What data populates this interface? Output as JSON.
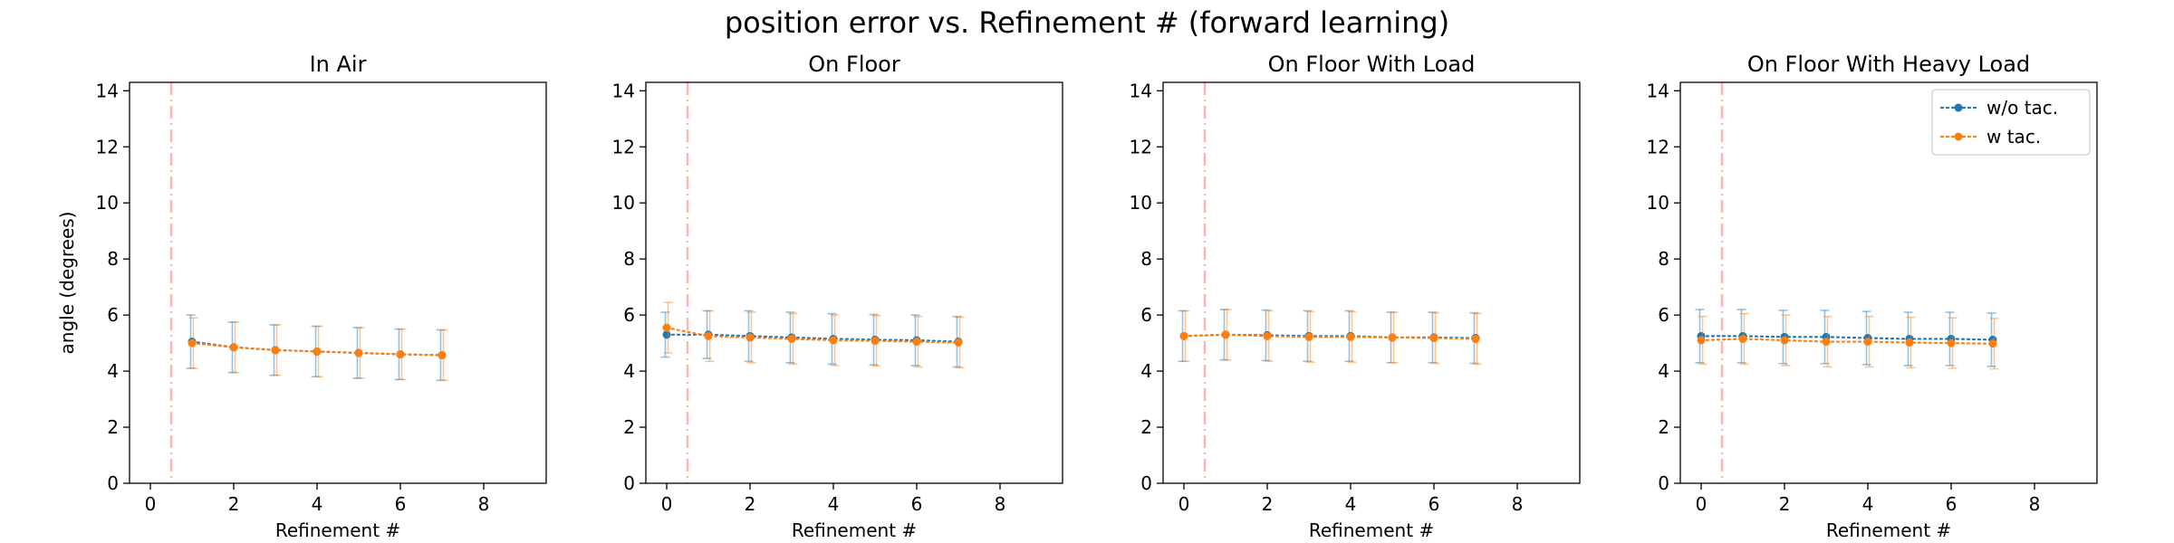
{
  "figure": {
    "title": "position error vs. Refinement # (forward learning)",
    "series_colors": {
      "w/o tac.": "#1f77b4",
      "w tac.": "#ff7f0e"
    },
    "marker_color": "#ffb3b3"
  },
  "chart_data": [
    {
      "type": "line",
      "title": "In Air",
      "xlabel": "Refinement #",
      "ylabel": "angle (degrees)",
      "xlim": [
        -0.5,
        9.5
      ],
      "ylim": [
        0,
        14.3
      ],
      "xticks": [
        0,
        2,
        4,
        6,
        8
      ],
      "yticks": [
        0,
        2,
        4,
        6,
        8,
        10,
        12,
        14
      ],
      "vline_x": 0.5,
      "grid": false,
      "legend": null,
      "x": [
        1,
        2,
        3,
        4,
        5,
        6,
        7
      ],
      "series": [
        {
          "name": "w/o tac.",
          "values": [
            5.05,
            4.85,
            4.75,
            4.7,
            4.65,
            4.6,
            4.57
          ],
          "err": [
            0.95,
            0.9,
            0.9,
            0.9,
            0.9,
            0.9,
            0.9
          ]
        },
        {
          "name": "w tac.",
          "values": [
            5.0,
            4.85,
            4.75,
            4.7,
            4.65,
            4.6,
            4.57
          ],
          "err": [
            0.9,
            0.9,
            0.9,
            0.9,
            0.9,
            0.9,
            0.9
          ]
        }
      ]
    },
    {
      "type": "line",
      "title": "On Floor",
      "xlabel": "Refinement #",
      "ylabel": "",
      "xlim": [
        -0.5,
        9.5
      ],
      "ylim": [
        0,
        14.3
      ],
      "xticks": [
        0,
        2,
        4,
        6,
        8
      ],
      "yticks": [
        0,
        2,
        4,
        6,
        8,
        10,
        12,
        14
      ],
      "vline_x": 0.5,
      "grid": false,
      "legend": null,
      "x": [
        0,
        1,
        2,
        3,
        4,
        5,
        6,
        7
      ],
      "series": [
        {
          "name": "w/o tac.",
          "values": [
            5.3,
            5.3,
            5.25,
            5.2,
            5.15,
            5.12,
            5.1,
            5.05
          ],
          "err": [
            0.8,
            0.85,
            0.9,
            0.9,
            0.9,
            0.9,
            0.9,
            0.9
          ]
        },
        {
          "name": "w tac.",
          "values": [
            5.55,
            5.25,
            5.2,
            5.15,
            5.1,
            5.08,
            5.05,
            5.02
          ],
          "err": [
            0.9,
            0.9,
            0.9,
            0.9,
            0.9,
            0.9,
            0.9,
            0.9
          ]
        }
      ]
    },
    {
      "type": "line",
      "title": "On Floor With Load",
      "xlabel": "Refinement #",
      "ylabel": "",
      "xlim": [
        -0.5,
        9.5
      ],
      "ylim": [
        0,
        14.3
      ],
      "xticks": [
        0,
        2,
        4,
        6,
        8
      ],
      "yticks": [
        0,
        2,
        4,
        6,
        8,
        10,
        12,
        14
      ],
      "vline_x": 0.5,
      "grid": false,
      "legend": null,
      "x": [
        0,
        1,
        2,
        3,
        4,
        5,
        6,
        7
      ],
      "series": [
        {
          "name": "w/o tac.",
          "values": [
            5.25,
            5.3,
            5.28,
            5.25,
            5.25,
            5.2,
            5.2,
            5.18
          ],
          "err": [
            0.9,
            0.9,
            0.9,
            0.9,
            0.9,
            0.9,
            0.9,
            0.9
          ]
        },
        {
          "name": "w tac.",
          "values": [
            5.25,
            5.3,
            5.25,
            5.22,
            5.22,
            5.2,
            5.18,
            5.15
          ],
          "err": [
            0.9,
            0.9,
            0.9,
            0.9,
            0.9,
            0.9,
            0.9,
            0.9
          ]
        }
      ]
    },
    {
      "type": "line",
      "title": "On Floor With Heavy Load",
      "xlabel": "Refinement #",
      "ylabel": "",
      "xlim": [
        -0.5,
        9.5
      ],
      "ylim": [
        0,
        14.3
      ],
      "xticks": [
        0,
        2,
        4,
        6,
        8
      ],
      "yticks": [
        0,
        2,
        4,
        6,
        8,
        10,
        12,
        14
      ],
      "vline_x": 0.5,
      "grid": false,
      "legend": "top-right",
      "x": [
        0,
        1,
        2,
        3,
        4,
        5,
        6,
        7
      ],
      "series": [
        {
          "name": "w/o tac.",
          "values": [
            5.25,
            5.25,
            5.22,
            5.22,
            5.18,
            5.15,
            5.15,
            5.12
          ],
          "err": [
            0.95,
            0.95,
            0.95,
            0.95,
            0.95,
            0.95,
            0.95,
            0.95
          ]
        },
        {
          "name": "w tac.",
          "values": [
            5.1,
            5.15,
            5.1,
            5.05,
            5.05,
            5.02,
            5.0,
            4.98
          ],
          "err": [
            0.85,
            0.9,
            0.9,
            0.9,
            0.9,
            0.9,
            0.9,
            0.9
          ]
        }
      ]
    }
  ]
}
